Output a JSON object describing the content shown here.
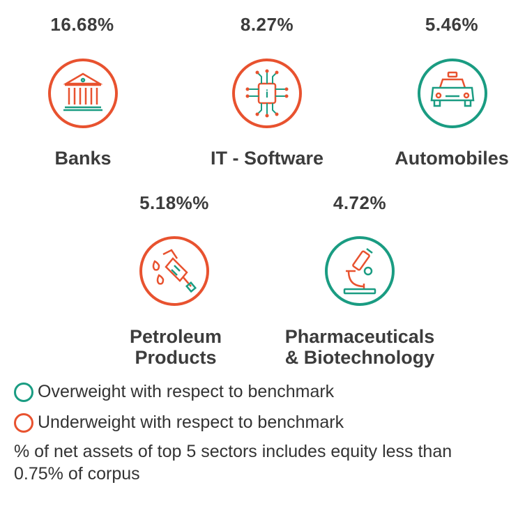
{
  "colors": {
    "overweight": "#1a9c82",
    "underweight": "#e8522f"
  },
  "sectors": [
    {
      "pct": "16.68%",
      "label": "Banks",
      "icon": "bank-icon",
      "weight": "underweight"
    },
    {
      "pct": "8.27%",
      "label": "IT - Software",
      "icon": "chip-icon",
      "weight": "underweight"
    },
    {
      "pct": "5.46%",
      "label": "Automobiles",
      "icon": "car-icon",
      "weight": "overweight"
    },
    {
      "pct": "5.18%%",
      "label_line1": "Petroleum",
      "label_line2": "Products",
      "icon": "fuel-nozzle-icon",
      "weight": "underweight"
    },
    {
      "pct": "4.72%",
      "label_line1": "Pharmaceuticals",
      "label_line2": "& Biotechnology",
      "icon": "microscope-icon",
      "weight": "overweight"
    }
  ],
  "legend": {
    "overweight": "Overweight with respect to benchmark",
    "underweight": "Underweight with respect to benchmark"
  },
  "note": "% of net assets of top 5 sectors includes equity less than 0.75% of corpus"
}
